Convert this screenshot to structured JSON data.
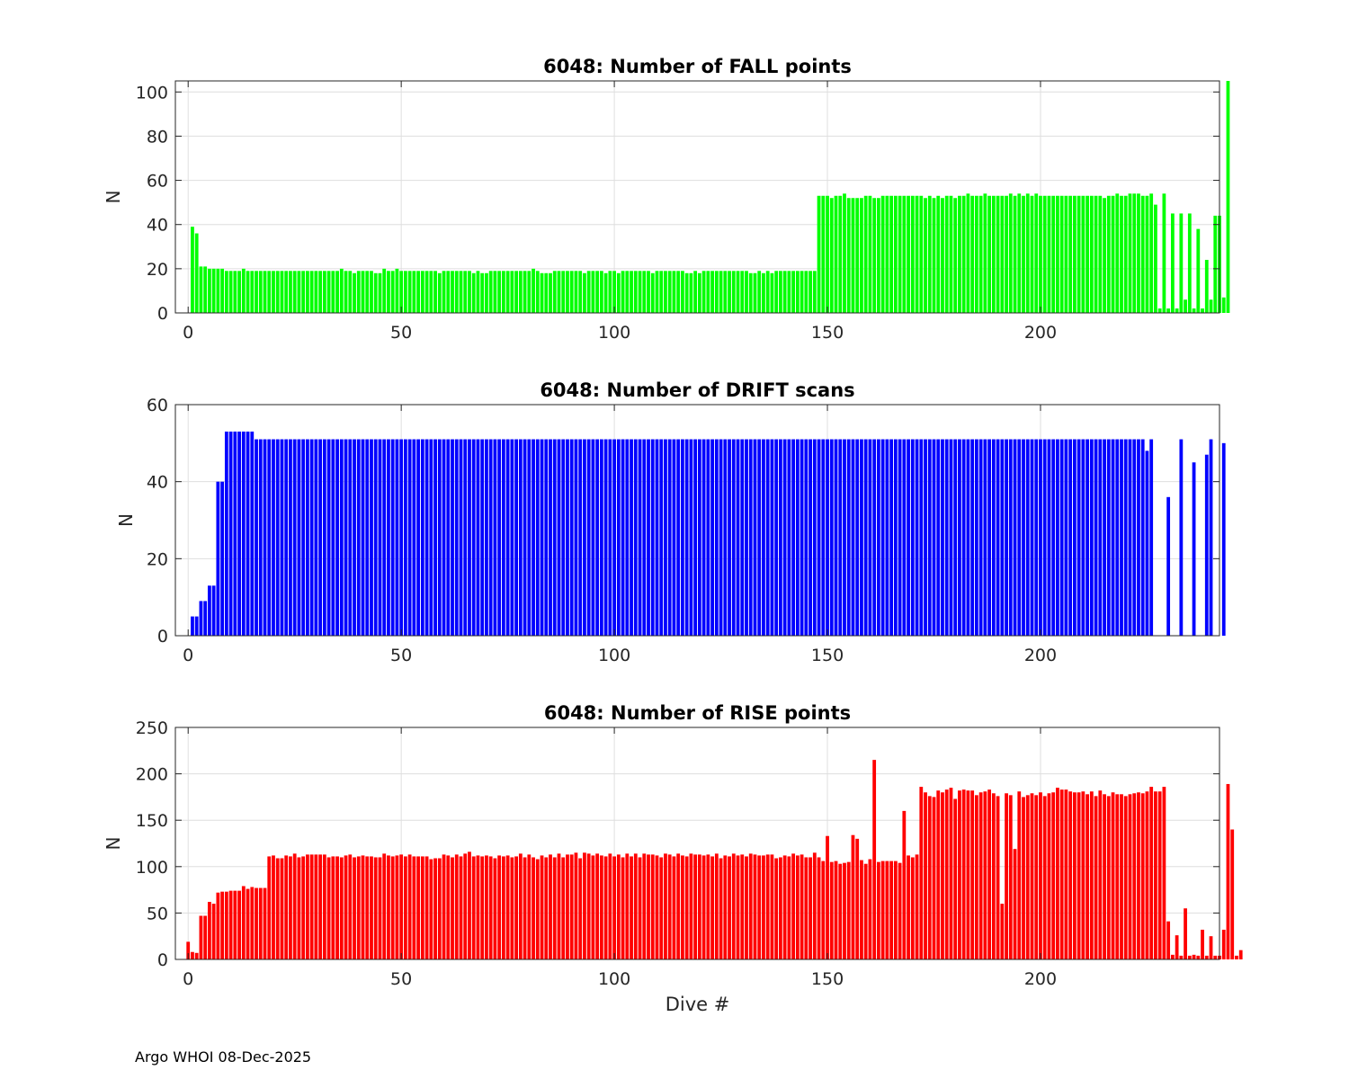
{
  "footer": "Argo WHOI 08-Dec-2025",
  "chart_data": [
    {
      "type": "bar",
      "title": "6048: Number of FALL points",
      "xlabel": "",
      "ylabel": "N",
      "xlim": [
        -3,
        242
      ],
      "ylim": [
        0,
        105
      ],
      "xticks": [
        0,
        50,
        100,
        150,
        200
      ],
      "yticks": [
        0,
        20,
        40,
        60,
        80,
        100
      ],
      "grid": true,
      "color": "#00ff00",
      "x_start": 1,
      "values": [
        39,
        36,
        21,
        21,
        20,
        20,
        20,
        20,
        19,
        19,
        19,
        19,
        20,
        19,
        19,
        19,
        19,
        19,
        19,
        19,
        19,
        19,
        19,
        19,
        19,
        19,
        19,
        19,
        19,
        19,
        19,
        19,
        19,
        19,
        19,
        20,
        19,
        19,
        18,
        19,
        19,
        19,
        19,
        18,
        18,
        20,
        19,
        19,
        20,
        19,
        19,
        19,
        19,
        19,
        19,
        19,
        19,
        19,
        18,
        19,
        19,
        19,
        19,
        19,
        19,
        19,
        18,
        19,
        18,
        18,
        19,
        19,
        19,
        19,
        19,
        19,
        19,
        19,
        19,
        19,
        20,
        19,
        18,
        18,
        18,
        19,
        19,
        19,
        19,
        19,
        19,
        19,
        18,
        19,
        19,
        19,
        19,
        18,
        19,
        19,
        18,
        19,
        19,
        19,
        19,
        19,
        19,
        19,
        18,
        19,
        19,
        19,
        19,
        19,
        19,
        19,
        18,
        18,
        19,
        18,
        19,
        19,
        19,
        19,
        19,
        19,
        19,
        19,
        19,
        19,
        19,
        18,
        18,
        19,
        18,
        19,
        18,
        19,
        19,
        19,
        19,
        19,
        19,
        19,
        19,
        19,
        19,
        53,
        53,
        53,
        52,
        53,
        53,
        54,
        52,
        52,
        52,
        52,
        53,
        53,
        52,
        52,
        53,
        53,
        53,
        53,
        53,
        53,
        53,
        53,
        53,
        53,
        52,
        53,
        52,
        53,
        52,
        53,
        53,
        52,
        53,
        53,
        54,
        53,
        53,
        53,
        54,
        53,
        53,
        53,
        53,
        53,
        54,
        53,
        54,
        53,
        54,
        53,
        54,
        53,
        53,
        53,
        53,
        53,
        53,
        53,
        53,
        53,
        53,
        53,
        53,
        53,
        53,
        53,
        52,
        53,
        53,
        54,
        53,
        53,
        54,
        54,
        54,
        53,
        53,
        54,
        49,
        2,
        54,
        2,
        45,
        2,
        45,
        6,
        45,
        2,
        38,
        2,
        24,
        6,
        44,
        44,
        7,
        105
      ]
    },
    {
      "type": "bar",
      "title": "6048: Number of DRIFT scans",
      "xlabel": "",
      "ylabel": "N",
      "xlim": [
        -3,
        242
      ],
      "ylim": [
        0,
        60
      ],
      "xticks": [
        0,
        50,
        100,
        150,
        200
      ],
      "yticks": [
        0,
        20,
        40,
        60
      ],
      "grid": true,
      "color": "#0000ff",
      "x_start": 1,
      "values": [
        5,
        5,
        9,
        9,
        13,
        13,
        40,
        40,
        53,
        53,
        53,
        53,
        53,
        53,
        53,
        51,
        51,
        51,
        51,
        51,
        51,
        51,
        51,
        51,
        51,
        51,
        51,
        51,
        51,
        51,
        51,
        51,
        51,
        51,
        51,
        51,
        51,
        51,
        51,
        51,
        51,
        51,
        51,
        51,
        51,
        51,
        51,
        51,
        51,
        51,
        51,
        51,
        51,
        51,
        51,
        51,
        51,
        51,
        51,
        51,
        51,
        51,
        51,
        51,
        51,
        51,
        51,
        51,
        51,
        51,
        51,
        51,
        51,
        51,
        51,
        51,
        51,
        51,
        51,
        51,
        51,
        51,
        51,
        51,
        51,
        51,
        51,
        51,
        51,
        51,
        51,
        51,
        51,
        51,
        51,
        51,
        51,
        51,
        51,
        51,
        51,
        51,
        51,
        51,
        51,
        51,
        51,
        51,
        51,
        51,
        51,
        51,
        51,
        51,
        51,
        51,
        51,
        51,
        51,
        51,
        51,
        51,
        51,
        51,
        51,
        51,
        51,
        51,
        51,
        51,
        51,
        51,
        51,
        51,
        51,
        51,
        51,
        51,
        51,
        51,
        51,
        51,
        51,
        51,
        51,
        51,
        51,
        51,
        51,
        51,
        51,
        51,
        51,
        51,
        51,
        51,
        51,
        51,
        51,
        51,
        51,
        51,
        51,
        51,
        51,
        51,
        51,
        51,
        51,
        51,
        51,
        51,
        51,
        51,
        51,
        51,
        51,
        51,
        51,
        51,
        51,
        51,
        51,
        51,
        51,
        51,
        51,
        51,
        51,
        51,
        51,
        51,
        51,
        51,
        51,
        51,
        51,
        51,
        51,
        51,
        51,
        51,
        51,
        51,
        51,
        51,
        51,
        51,
        51,
        51,
        51,
        51,
        51,
        51,
        51,
        51,
        51,
        51,
        51,
        51,
        51,
        51,
        51,
        51,
        48,
        51,
        0,
        0,
        0,
        36,
        0,
        0,
        51,
        0,
        0,
        45,
        0,
        0,
        47,
        51,
        0,
        0,
        50
      ]
    },
    {
      "type": "bar",
      "title": "6048: Number of RISE points",
      "xlabel": "Dive #",
      "ylabel": "N",
      "xlim": [
        -3,
        242
      ],
      "ylim": [
        0,
        250
      ],
      "xticks": [
        0,
        50,
        100,
        150,
        200
      ],
      "yticks": [
        0,
        50,
        100,
        150,
        200,
        250
      ],
      "grid": true,
      "color": "#ff0000",
      "x_start": 0,
      "values": [
        19,
        8,
        7,
        47,
        47,
        62,
        60,
        72,
        73,
        73,
        74,
        74,
        74,
        79,
        76,
        78,
        77,
        77,
        77,
        111,
        112,
        109,
        109,
        112,
        111,
        114,
        110,
        111,
        113,
        113,
        113,
        113,
        113,
        110,
        111,
        111,
        110,
        112,
        113,
        110,
        111,
        112,
        111,
        111,
        110,
        110,
        114,
        112,
        111,
        112,
        113,
        111,
        113,
        111,
        111,
        111,
        111,
        108,
        109,
        109,
        113,
        112,
        110,
        113,
        111,
        114,
        116,
        111,
        112,
        111,
        112,
        111,
        109,
        112,
        111,
        112,
        110,
        111,
        114,
        110,
        113,
        110,
        108,
        112,
        110,
        113,
        110,
        114,
        110,
        113,
        113,
        115,
        109,
        115,
        114,
        112,
        114,
        112,
        111,
        114,
        111,
        113,
        110,
        114,
        111,
        114,
        110,
        114,
        113,
        113,
        112,
        110,
        114,
        113,
        111,
        114,
        112,
        111,
        114,
        113,
        113,
        112,
        113,
        111,
        114,
        109,
        112,
        111,
        114,
        112,
        113,
        111,
        114,
        113,
        112,
        112,
        113,
        113,
        109,
        110,
        112,
        111,
        114,
        112,
        113,
        110,
        110,
        115,
        110,
        106,
        133,
        105,
        106,
        103,
        104,
        105,
        134,
        130,
        107,
        103,
        108,
        215,
        105,
        106,
        106,
        106,
        106,
        104,
        160,
        112,
        110,
        113,
        186,
        180,
        176,
        175,
        182,
        180,
        183,
        185,
        173,
        182,
        183,
        182,
        182,
        177,
        180,
        181,
        183,
        179,
        176,
        60,
        179,
        177,
        119,
        181,
        175,
        177,
        179,
        177,
        180,
        176,
        179,
        180,
        185,
        183,
        183,
        181,
        180,
        180,
        181,
        178,
        181,
        176,
        182,
        178,
        176,
        180,
        178,
        178,
        176,
        178,
        179,
        180,
        179,
        181,
        186,
        181,
        181,
        186,
        41,
        5,
        26,
        4,
        55,
        4,
        5,
        4,
        32,
        4,
        25,
        4,
        4,
        32,
        189,
        140,
        4,
        10
      ]
    }
  ]
}
